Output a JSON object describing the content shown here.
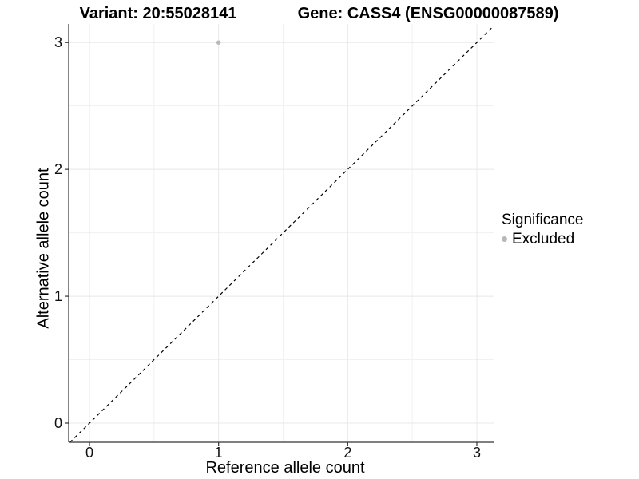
{
  "chart_data": {
    "type": "scatter",
    "title_left": "Variant: 20:55028141",
    "title_right": "Gene: CASS4 (ENSG00000087589)",
    "xlabel": "Reference allele count",
    "ylabel": "Alternative allele count",
    "x_ticks": [
      0,
      1,
      2,
      3
    ],
    "y_ticks": [
      0,
      1,
      2,
      3
    ],
    "x_minor_ticks": [
      0.5,
      1.5,
      2.5
    ],
    "y_minor_ticks": [
      0.5,
      1.5,
      2.5
    ],
    "xlim": [
      -0.161,
      3.13
    ],
    "ylim": [
      -0.151,
      3.146
    ],
    "grid": "major+minor",
    "points": [
      {
        "x": 1,
        "y": 3,
        "series": "Excluded"
      }
    ],
    "reference_line": {
      "type": "identity",
      "from": -0.151,
      "to": 3.13,
      "style": "dashed",
      "color": "#000000"
    },
    "legend": {
      "title": "Significance",
      "position": "right",
      "items": [
        {
          "label": "Excluded",
          "color": "#b8b8b8"
        }
      ]
    },
    "colors": {
      "point": "#b8b8b8",
      "grid_major": "#e8e8e8",
      "grid_minor": "#f1f1f1",
      "axis_line": "#333333",
      "tick_mark": "#333333"
    }
  }
}
